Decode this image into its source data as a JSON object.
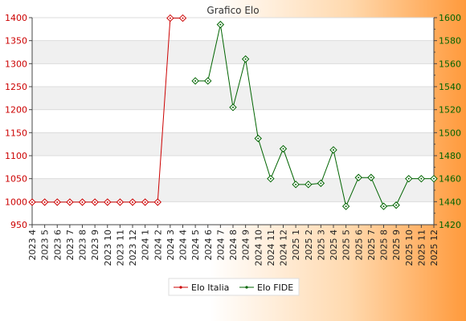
{
  "chart_data": {
    "type": "line",
    "title": "Grafico Elo",
    "categories": [
      "2023 4",
      "2023 5",
      "2023 6",
      "2023 7",
      "2023 8",
      "2023 9",
      "2023 10",
      "2023 11",
      "2023 12",
      "2024 1",
      "2024 2",
      "2024 3",
      "2024 4",
      "2024 5",
      "2024 6",
      "2024 7",
      "2024 8",
      "2024 9",
      "2024 10",
      "2024 11",
      "2024 12",
      "2025 1",
      "2025 2",
      "2025 3",
      "2025 4",
      "2025 5",
      "2025 6",
      "2025 7",
      "2025 8",
      "2025 9",
      "2025 10",
      "2025 11",
      "2025 12"
    ],
    "y_left": {
      "ticks": [
        950,
        1000,
        1050,
        1100,
        1150,
        1200,
        1250,
        1300,
        1350,
        1400
      ],
      "range": [
        950,
        1400
      ],
      "color": "#cc0000"
    },
    "y_right": {
      "ticks": [
        1420,
        1440,
        1460,
        1480,
        1500,
        1520,
        1540,
        1560,
        1580,
        1600
      ],
      "range": [
        1420,
        1600
      ],
      "color": "#008000"
    },
    "series": [
      {
        "name": "Elo Italia",
        "axis": "left",
        "color": "#cc0000",
        "values": [
          999,
          999,
          999,
          999,
          999,
          999,
          999,
          999,
          999,
          999,
          999,
          1399,
          1399,
          null,
          null,
          null,
          null,
          null,
          null,
          null,
          null,
          null,
          null,
          null,
          null,
          null,
          null,
          null,
          null,
          null,
          null,
          null,
          null
        ]
      },
      {
        "name": "Elo FIDE",
        "axis": "right",
        "color": "#006400",
        "values": [
          null,
          null,
          null,
          null,
          null,
          null,
          null,
          null,
          null,
          null,
          null,
          null,
          null,
          1545,
          1545,
          1594,
          1522,
          1564,
          1495,
          1460,
          1486,
          1455,
          1455,
          1456,
          1485,
          1436,
          1461,
          1461,
          1436,
          1437,
          1460,
          1460,
          1460
        ]
      }
    ],
    "grid": true,
    "legend_position": "bottom-center"
  }
}
